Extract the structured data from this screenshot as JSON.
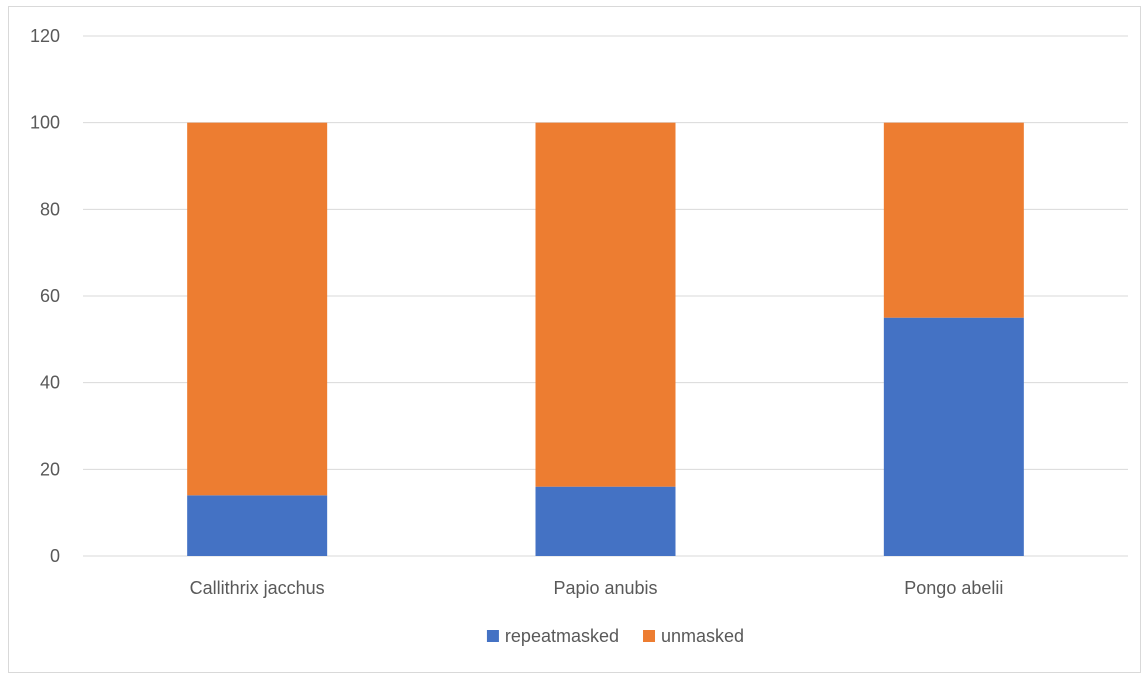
{
  "chart_data": {
    "type": "bar",
    "stacked": true,
    "categories": [
      "Callithrix jacchus",
      "Papio anubis",
      "Pongo abelii"
    ],
    "series": [
      {
        "name": "repeatmasked",
        "values": [
          14,
          16,
          55
        ],
        "color": "#4472C4"
      },
      {
        "name": "unmasked",
        "values": [
          86,
          84,
          45
        ],
        "color": "#ED7D31"
      }
    ],
    "yticks": [
      "0",
      "20",
      "40",
      "60",
      "80",
      "100",
      "120"
    ],
    "ylim": [
      0,
      120
    ],
    "grid": true,
    "legend_position": "bottom",
    "gridline_color": "#d9d9d9"
  }
}
